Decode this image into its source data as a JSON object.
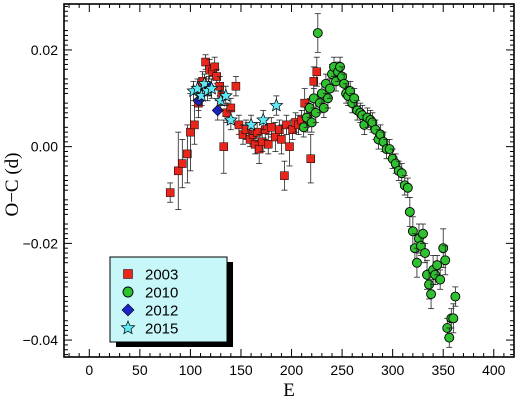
{
  "chart_data": {
    "type": "scatter",
    "title": "",
    "xlabel": "E",
    "ylabel": "O−C (d)",
    "xlim": [
      -25,
      420
    ],
    "ylim": [
      -0.0435,
      0.0295
    ],
    "x_ticks": [
      "0",
      "50",
      "100",
      "150",
      "200",
      "250",
      "300",
      "350",
      "400"
    ],
    "y_ticks": [
      "−0.04",
      "−0.02",
      "0.00",
      "0.02"
    ],
    "x_tick_values": [
      0,
      50,
      100,
      150,
      200,
      250,
      300,
      350,
      400
    ],
    "y_tick_values": [
      -0.04,
      -0.02,
      0.0,
      0.02
    ],
    "grid": false,
    "legend_position": "lower-left",
    "series": [
      {
        "name": "2003",
        "marker": "square",
        "color": "#e8261b",
        "points": [
          {
            "x": 80,
            "y": -0.0095,
            "err": 0.002
          },
          {
            "x": 88,
            "y": -0.005,
            "err": 0.008
          },
          {
            "x": 92,
            "y": -0.0035,
            "err": 0.005
          },
          {
            "x": 97,
            "y": -0.0015,
            "err": 0.006
          },
          {
            "x": 100,
            "y": 0.003,
            "err": 0.008
          },
          {
            "x": 104,
            "y": 0.0045,
            "err": 0.004
          },
          {
            "x": 108,
            "y": 0.009,
            "err": 0.003
          },
          {
            "x": 112,
            "y": 0.0135,
            "err": 0.002
          },
          {
            "x": 115,
            "y": 0.0175,
            "err": 0.0015
          },
          {
            "x": 119,
            "y": 0.016,
            "err": 0.002
          },
          {
            "x": 122,
            "y": 0.0155,
            "err": 0.0015
          },
          {
            "x": 124,
            "y": 0.0165,
            "err": 0.002
          },
          {
            "x": 126,
            "y": 0.0145,
            "err": 0.0015
          },
          {
            "x": 129,
            "y": 0.0125,
            "err": 0.002
          },
          {
            "x": 131,
            "y": 0.0105,
            "err": 0.002
          },
          {
            "x": 133,
            "y": 0.0,
            "err": 0.0055
          },
          {
            "x": 136,
            "y": 0.007,
            "err": 0.002
          },
          {
            "x": 140,
            "y": 0.008,
            "err": 0.002
          },
          {
            "x": 145,
            "y": 0.0125,
            "err": 0.002
          },
          {
            "x": 148,
            "y": 0.0045,
            "err": 0.002
          },
          {
            "x": 152,
            "y": 0.0025,
            "err": 0.002
          },
          {
            "x": 155,
            "y": 0.0035,
            "err": 0.002
          },
          {
            "x": 159,
            "y": 0.0015,
            "err": 0.0015
          },
          {
            "x": 162,
            "y": 0.0025,
            "err": 0.002
          },
          {
            "x": 164,
            "y": 0.0005,
            "err": 0.002
          },
          {
            "x": 166,
            "y": 0.003,
            "err": 0.002
          },
          {
            "x": 168,
            "y": -0.0005,
            "err": 0.003
          },
          {
            "x": 171,
            "y": 0.001,
            "err": 0.002
          },
          {
            "x": 174,
            "y": 0.0035,
            "err": 0.002
          },
          {
            "x": 177,
            "y": 0.0005,
            "err": 0.002
          },
          {
            "x": 180,
            "y": 0.004,
            "err": 0.002
          },
          {
            "x": 184,
            "y": 0.002,
            "err": 0.003
          },
          {
            "x": 188,
            "y": 0.0035,
            "err": 0.002
          },
          {
            "x": 190,
            "y": 0.0015,
            "err": 0.003
          },
          {
            "x": 193,
            "y": -0.006,
            "err": 0.003
          },
          {
            "x": 195,
            "y": 0.0045,
            "err": 0.002
          },
          {
            "x": 198,
            "y": 0.0,
            "err": 0.004
          },
          {
            "x": 201,
            "y": 0.0035,
            "err": 0.002
          },
          {
            "x": 204,
            "y": 0.005,
            "err": 0.002
          },
          {
            "x": 207,
            "y": 0.0045,
            "err": 0.002
          },
          {
            "x": 210,
            "y": 0.0055,
            "err": 0.002
          },
          {
            "x": 213,
            "y": 0.009,
            "err": 0.003
          },
          {
            "x": 216,
            "y": 0.006,
            "err": 0.003
          },
          {
            "x": 219,
            "y": -0.0025,
            "err": 0.005
          },
          {
            "x": 222,
            "y": 0.0135,
            "err": 0.003
          },
          {
            "x": 225,
            "y": 0.0155,
            "err": 0.003
          }
        ]
      },
      {
        "name": "2010",
        "marker": "circle",
        "color": "#2fc12f",
        "points": [
          {
            "x": 212,
            "y": 0.004,
            "err": 0.002
          },
          {
            "x": 215,
            "y": 0.006,
            "err": 0.002
          },
          {
            "x": 218,
            "y": 0.008,
            "err": 0.002
          },
          {
            "x": 220,
            "y": 0.005,
            "err": 0.002
          },
          {
            "x": 222,
            "y": 0.01,
            "err": 0.002
          },
          {
            "x": 224,
            "y": 0.007,
            "err": 0.002
          },
          {
            "x": 226,
            "y": 0.0235,
            "err": 0.004
          },
          {
            "x": 228,
            "y": 0.009,
            "err": 0.002
          },
          {
            "x": 230,
            "y": 0.011,
            "err": 0.002
          },
          {
            "x": 232,
            "y": 0.008,
            "err": 0.002
          },
          {
            "x": 234,
            "y": 0.013,
            "err": 0.002
          },
          {
            "x": 236,
            "y": 0.01,
            "err": 0.002
          },
          {
            "x": 238,
            "y": 0.012,
            "err": 0.002
          },
          {
            "x": 240,
            "y": 0.015,
            "err": 0.002
          },
          {
            "x": 242,
            "y": 0.0165,
            "err": 0.002
          },
          {
            "x": 244,
            "y": 0.0135,
            "err": 0.002
          },
          {
            "x": 246,
            "y": 0.0155,
            "err": 0.002
          },
          {
            "x": 248,
            "y": 0.0165,
            "err": 0.002
          },
          {
            "x": 250,
            "y": 0.0145,
            "err": 0.002
          },
          {
            "x": 252,
            "y": 0.013,
            "err": 0.002
          },
          {
            "x": 254,
            "y": 0.011,
            "err": 0.002
          },
          {
            "x": 256,
            "y": 0.0105,
            "err": 0.002
          },
          {
            "x": 258,
            "y": 0.0115,
            "err": 0.002
          },
          {
            "x": 260,
            "y": 0.009,
            "err": 0.002
          },
          {
            "x": 262,
            "y": 0.01,
            "err": 0.002
          },
          {
            "x": 265,
            "y": 0.0075,
            "err": 0.002
          },
          {
            "x": 268,
            "y": 0.007,
            "err": 0.002
          },
          {
            "x": 270,
            "y": 0.0065,
            "err": 0.002
          },
          {
            "x": 272,
            "y": 0.0045,
            "err": 0.002
          },
          {
            "x": 275,
            "y": 0.006,
            "err": 0.002
          },
          {
            "x": 278,
            "y": 0.0055,
            "err": 0.002
          },
          {
            "x": 280,
            "y": 0.005,
            "err": 0.002
          },
          {
            "x": 283,
            "y": 0.0035,
            "err": 0.002
          },
          {
            "x": 286,
            "y": 0.0015,
            "err": 0.002
          },
          {
            "x": 288,
            "y": 0.0025,
            "err": 0.002
          },
          {
            "x": 291,
            "y": 0.001,
            "err": 0.002
          },
          {
            "x": 294,
            "y": -0.0005,
            "err": 0.002
          },
          {
            "x": 297,
            "y": -0.0005,
            "err": 0.002
          },
          {
            "x": 300,
            "y": -0.0025,
            "err": 0.002
          },
          {
            "x": 303,
            "y": -0.0035,
            "err": 0.002
          },
          {
            "x": 306,
            "y": -0.005,
            "err": 0.002
          },
          {
            "x": 309,
            "y": -0.0055,
            "err": 0.002
          },
          {
            "x": 312,
            "y": -0.008,
            "err": 0.002
          },
          {
            "x": 315,
            "y": -0.0085,
            "err": 0.002
          },
          {
            "x": 317,
            "y": -0.0135,
            "err": 0.003
          },
          {
            "x": 320,
            "y": -0.0175,
            "err": 0.003
          },
          {
            "x": 322,
            "y": -0.021,
            "err": 0.003
          },
          {
            "x": 324,
            "y": -0.024,
            "err": 0.003
          },
          {
            "x": 326,
            "y": -0.019,
            "err": 0.003
          },
          {
            "x": 328,
            "y": -0.0205,
            "err": 0.002
          },
          {
            "x": 330,
            "y": -0.018,
            "err": 0.002
          },
          {
            "x": 332,
            "y": -0.022,
            "err": 0.002
          },
          {
            "x": 334,
            "y": -0.0265,
            "err": 0.003
          },
          {
            "x": 336,
            "y": -0.0285,
            "err": 0.003
          },
          {
            "x": 338,
            "y": -0.0305,
            "err": 0.003
          },
          {
            "x": 340,
            "y": -0.0255,
            "err": 0.003
          },
          {
            "x": 342,
            "y": -0.0265,
            "err": 0.002
          },
          {
            "x": 344,
            "y": -0.0245,
            "err": 0.002
          },
          {
            "x": 347,
            "y": -0.0275,
            "err": 0.002
          },
          {
            "x": 350,
            "y": -0.021,
            "err": 0.004
          },
          {
            "x": 352,
            "y": -0.0235,
            "err": 0.003
          },
          {
            "x": 354,
            "y": -0.0375,
            "err": 0.002
          },
          {
            "x": 356,
            "y": -0.0395,
            "err": 0.002
          },
          {
            "x": 358,
            "y": -0.0355,
            "err": 0.002
          },
          {
            "x": 360,
            "y": -0.0355,
            "err": 0.003
          },
          {
            "x": 362,
            "y": -0.031,
            "err": 0.002
          }
        ]
      },
      {
        "name": "2012",
        "marker": "diamond",
        "color": "#1a23c8",
        "points": [
          {
            "x": 108,
            "y": 0.0095,
            "err": 0.002
          },
          {
            "x": 118,
            "y": 0.0125,
            "err": 0.002
          },
          {
            "x": 127,
            "y": 0.0075,
            "err": 0.002
          }
        ]
      },
      {
        "name": "2015",
        "marker": "star",
        "color": "#5fe8f5",
        "points": [
          {
            "x": 103,
            "y": 0.0115,
            "err": 0.002
          },
          {
            "x": 107,
            "y": 0.012,
            "err": 0.002
          },
          {
            "x": 111,
            "y": 0.0105,
            "err": 0.002
          },
          {
            "x": 114,
            "y": 0.013,
            "err": 0.002
          },
          {
            "x": 117,
            "y": 0.0115,
            "err": 0.002
          },
          {
            "x": 121,
            "y": 0.012,
            "err": 0.002
          },
          {
            "x": 130,
            "y": 0.0095,
            "err": 0.002
          },
          {
            "x": 135,
            "y": 0.0105,
            "err": 0.002
          },
          {
            "x": 140,
            "y": 0.0055,
            "err": 0.002
          },
          {
            "x": 160,
            "y": 0.0045,
            "err": 0.002
          },
          {
            "x": 172,
            "y": 0.0055,
            "err": 0.002
          },
          {
            "x": 185,
            "y": 0.0085,
            "err": 0.002
          }
        ]
      }
    ]
  }
}
